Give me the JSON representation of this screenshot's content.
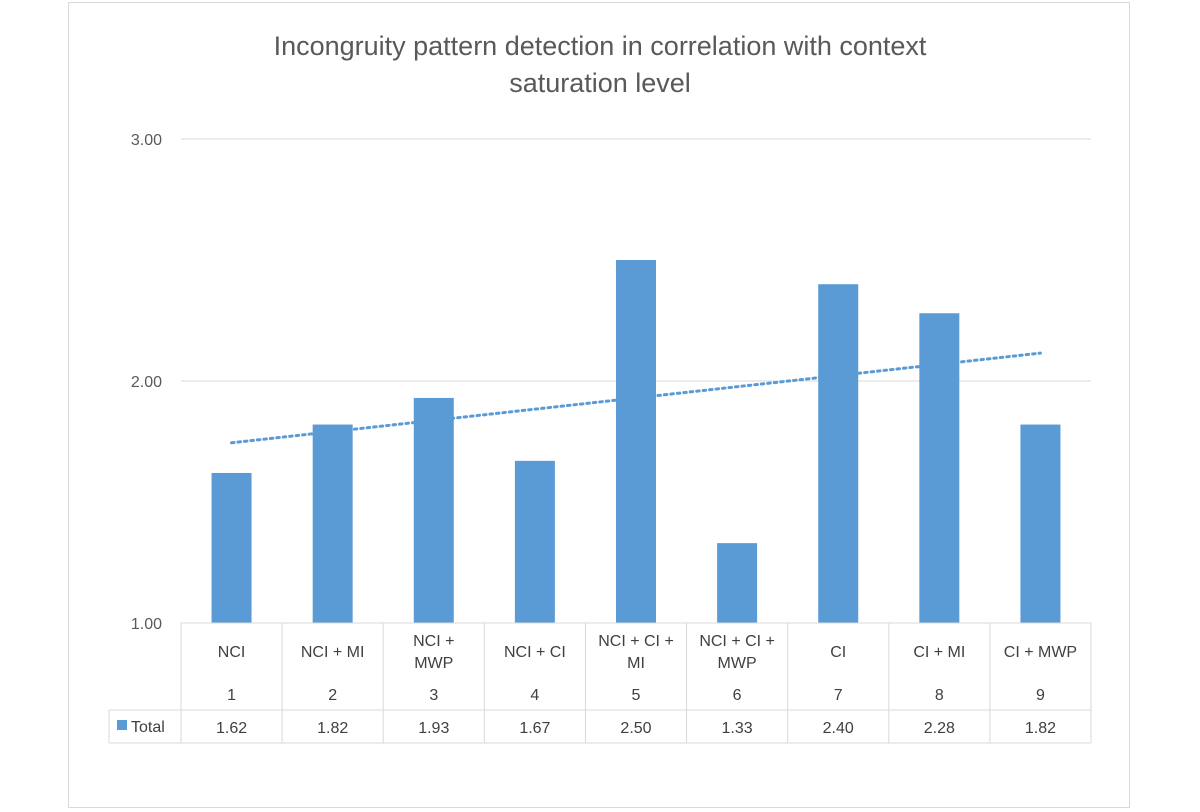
{
  "chart_data": {
    "type": "bar",
    "title": [
      "Incongruity pattern detection in correlation with context",
      "saturation level"
    ],
    "categories": [
      {
        "label": [
          "NCI"
        ],
        "index": "1"
      },
      {
        "label": [
          "NCI + MI"
        ],
        "index": "2"
      },
      {
        "label": [
          "NCI +",
          "MWP"
        ],
        "index": "3"
      },
      {
        "label": [
          "NCI + CI"
        ],
        "index": "4"
      },
      {
        "label": [
          "NCI + CI +",
          "MI"
        ],
        "index": "5"
      },
      {
        "label": [
          "NCI + CI +",
          "MWP"
        ],
        "index": "6"
      },
      {
        "label": [
          "CI"
        ],
        "index": "7"
      },
      {
        "label": [
          "CI + MI"
        ],
        "index": "8"
      },
      {
        "label": [
          "CI + MWP"
        ],
        "index": "9"
      }
    ],
    "series": [
      {
        "name": "Total",
        "values": [
          1.62,
          1.82,
          1.93,
          1.67,
          2.5,
          1.33,
          2.4,
          2.28,
          1.82
        ],
        "value_labels": [
          "1.62",
          "1.82",
          "1.93",
          "1.67",
          "2.50",
          "1.33",
          "2.40",
          "2.28",
          "1.82"
        ],
        "color": "#5b9bd5"
      }
    ],
    "trendline": {
      "type": "linear",
      "style": "dotted",
      "color": "#5b9bd5"
    },
    "ylim": [
      1.0,
      3.0
    ],
    "yticks": [
      1.0,
      2.0,
      3.0
    ],
    "ytick_labels": [
      "1.00",
      "2.00",
      "3.00"
    ],
    "grid": true,
    "legend": "data-table",
    "xlabel": "",
    "ylabel": ""
  },
  "colors": {
    "grid": "#d9d9d9",
    "text": "#595959"
  }
}
